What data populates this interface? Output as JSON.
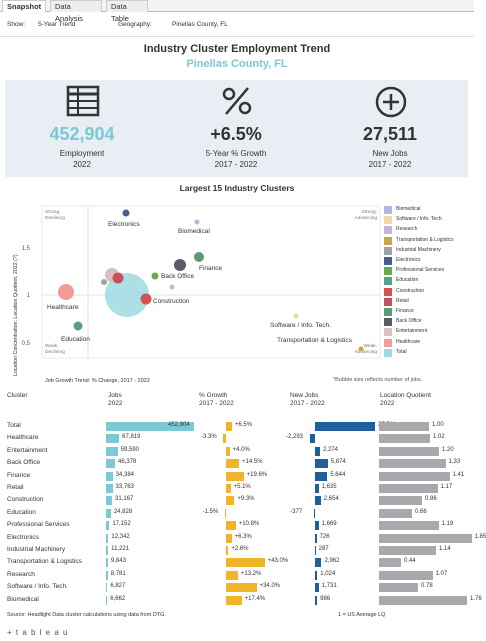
{
  "tabs": [
    "Snapshot",
    "Data Analysis",
    "Data Table"
  ],
  "filters": {
    "show_label": "Show:",
    "show_value": "5-Year Trend",
    "geo_label": "Geography:",
    "geo_value": "Pinellas County, FL"
  },
  "header": {
    "title": "Industry Cluster Employment Trend",
    "subtitle": "Pinellas County, FL"
  },
  "kpis": [
    {
      "value": "452,904",
      "label": "Employment",
      "sub": "2022",
      "color": "#7cc8d4",
      "icon": "table-icon"
    },
    {
      "value": "+6.5%",
      "label": "5-Year % Growth",
      "sub": "2017 - 2022",
      "color": "#333333",
      "icon": "percent-icon"
    },
    {
      "value": "27,511",
      "label": "New Jobs",
      "sub": "2017 - 2022",
      "color": "#333333",
      "icon": "plus-circle-icon"
    }
  ],
  "scatter": {
    "title": "Largest 15 Industry Clusters",
    "ylabel": "Location Concentration: Location Quotient, 2022  (?)",
    "xlabel": "Job Growth Trend: % Change, 2017 - 2022",
    "note": "*Bubble size reflects number of jobs.",
    "yticks": [
      "1.5",
      "1",
      "0.5"
    ],
    "quadrants": {
      "tl": [
        "Strong,",
        "Declining"
      ],
      "tr": [
        "Strong,",
        "Advancing"
      ],
      "bl": [
        "Weak,",
        "Declining"
      ],
      "br": [
        "Weak,",
        "Advancing"
      ]
    },
    "labels": [
      "Electronics",
      "Biomedical",
      "Finance",
      "Back Office",
      "Healthcare",
      "Construction",
      "Education",
      "Software / Info. Tech.",
      "Transportation & Logistics"
    ]
  },
  "legend": [
    {
      "name": "Biomedical",
      "color": "#aeb7e2"
    },
    {
      "name": "Software / Info. Tech.",
      "color": "#f0d9a6"
    },
    {
      "name": "Research",
      "color": "#c8b4d8"
    },
    {
      "name": "Transportation & Logistics",
      "color": "#c7a64a"
    },
    {
      "name": "Industrial Machinery",
      "color": "#9fa3a7"
    },
    {
      "name": "Electronics",
      "color": "#4a5f8f"
    },
    {
      "name": "Professional Services",
      "color": "#6aaa4b"
    },
    {
      "name": "Education",
      "color": "#57a08a"
    },
    {
      "name": "Construction",
      "color": "#d4524f"
    },
    {
      "name": "Retail",
      "color": "#c2535a"
    },
    {
      "name": "Finance",
      "color": "#5a9e6f"
    },
    {
      "name": "Back Office",
      "color": "#5b5a6a"
    },
    {
      "name": "Entertainment",
      "color": "#d8c0c7"
    },
    {
      "name": "Healthcare",
      "color": "#f39b9b"
    },
    {
      "name": "Total",
      "color": "#9fd9e2"
    }
  ],
  "table": {
    "headers": {
      "cluster": "Cluster",
      "jobs": "Jobs\n2022",
      "growth": "% Growth\n2017 - 2022",
      "newjobs": "New Jobs\n2017 - 2022",
      "lq": "Location Quotient\n2022"
    },
    "rows": [
      {
        "name": "Total",
        "jobs": "452,904",
        "jobs_n": 452904,
        "growth": "+6.5%",
        "growth_n": 6.5,
        "newjobs": "27,511",
        "new_n": 27511,
        "lq": "1.00",
        "lq_n": 1.0
      },
      {
        "name": "Healthcare",
        "jobs": "67,819",
        "jobs_n": 67819,
        "growth": "-3.3%",
        "growth_n": -3.3,
        "newjobs": "-2,293",
        "new_n": -2293,
        "lq": "1.02",
        "lq_n": 1.02
      },
      {
        "name": "Entertainment",
        "jobs": "59,590",
        "jobs_n": 59590,
        "growth": "+4.0%",
        "growth_n": 4.0,
        "newjobs": "2,274",
        "new_n": 2274,
        "lq": "1.20",
        "lq_n": 1.2
      },
      {
        "name": "Back Office",
        "jobs": "46,378",
        "jobs_n": 46378,
        "growth": "+14.5%",
        "growth_n": 14.5,
        "newjobs": "5,874",
        "new_n": 5874,
        "lq": "1.33",
        "lq_n": 1.33
      },
      {
        "name": "Finance",
        "jobs": "34,384",
        "jobs_n": 34384,
        "growth": "+19.6%",
        "growth_n": 19.6,
        "newjobs": "5,644",
        "new_n": 5644,
        "lq": "1.41",
        "lq_n": 1.41
      },
      {
        "name": "Retail",
        "jobs": "33,763",
        "jobs_n": 33763,
        "growth": "+5.1%",
        "growth_n": 5.1,
        "newjobs": "1,635",
        "new_n": 1635,
        "lq": "1.17",
        "lq_n": 1.17
      },
      {
        "name": "Construction",
        "jobs": "31,167",
        "jobs_n": 31167,
        "growth": "+9.3%",
        "growth_n": 9.3,
        "newjobs": "2,654",
        "new_n": 2654,
        "lq": "0.86",
        "lq_n": 0.86
      },
      {
        "name": "Education",
        "jobs": "24,828",
        "jobs_n": 24828,
        "growth": "-1.5%",
        "growth_n": -1.5,
        "newjobs": "-377",
        "new_n": -377,
        "lq": "0.66",
        "lq_n": 0.66
      },
      {
        "name": "Professional Services",
        "jobs": "17,152",
        "jobs_n": 17152,
        "growth": "+10.8%",
        "growth_n": 10.8,
        "newjobs": "1,669",
        "new_n": 1669,
        "lq": "1.19",
        "lq_n": 1.19
      },
      {
        "name": "Electronics",
        "jobs": "12,342",
        "jobs_n": 12342,
        "growth": "+6.3%",
        "growth_n": 6.3,
        "newjobs": "726",
        "new_n": 726,
        "lq": "1.85",
        "lq_n": 1.85
      },
      {
        "name": "Industrial Machinery",
        "jobs": "11,221",
        "jobs_n": 11221,
        "growth": "+2.6%",
        "growth_n": 2.6,
        "newjobs": "287",
        "new_n": 287,
        "lq": "1.14",
        "lq_n": 1.14
      },
      {
        "name": "Transportation & Logistics",
        "jobs": "9,843",
        "jobs_n": 9843,
        "growth": "+43.0%",
        "growth_n": 43.0,
        "newjobs": "2,962",
        "new_n": 2962,
        "lq": "0.44",
        "lq_n": 0.44
      },
      {
        "name": "Research",
        "jobs": "8,781",
        "jobs_n": 8781,
        "growth": "+13.2%",
        "growth_n": 13.2,
        "newjobs": "1,024",
        "new_n": 1024,
        "lq": "1.07",
        "lq_n": 1.07
      },
      {
        "name": "Software / Info. Tech.",
        "jobs": "6,827",
        "jobs_n": 6827,
        "growth": "+34.0%",
        "growth_n": 34.0,
        "newjobs": "1,731",
        "new_n": 1731,
        "lq": "0.78",
        "lq_n": 0.78
      },
      {
        "name": "Biomedical",
        "jobs": "6,662",
        "jobs_n": 6662,
        "growth": "+17.4%",
        "growth_n": 17.4,
        "newjobs": "986",
        "new_n": 986,
        "lq": "1.76",
        "lq_n": 1.76
      }
    ]
  },
  "footer": {
    "source": "Source: Headlight Data cluster calculations using data from DTG.",
    "lq_note": "1 = US Average LQ",
    "brand": "+ t a b l e a u"
  }
}
